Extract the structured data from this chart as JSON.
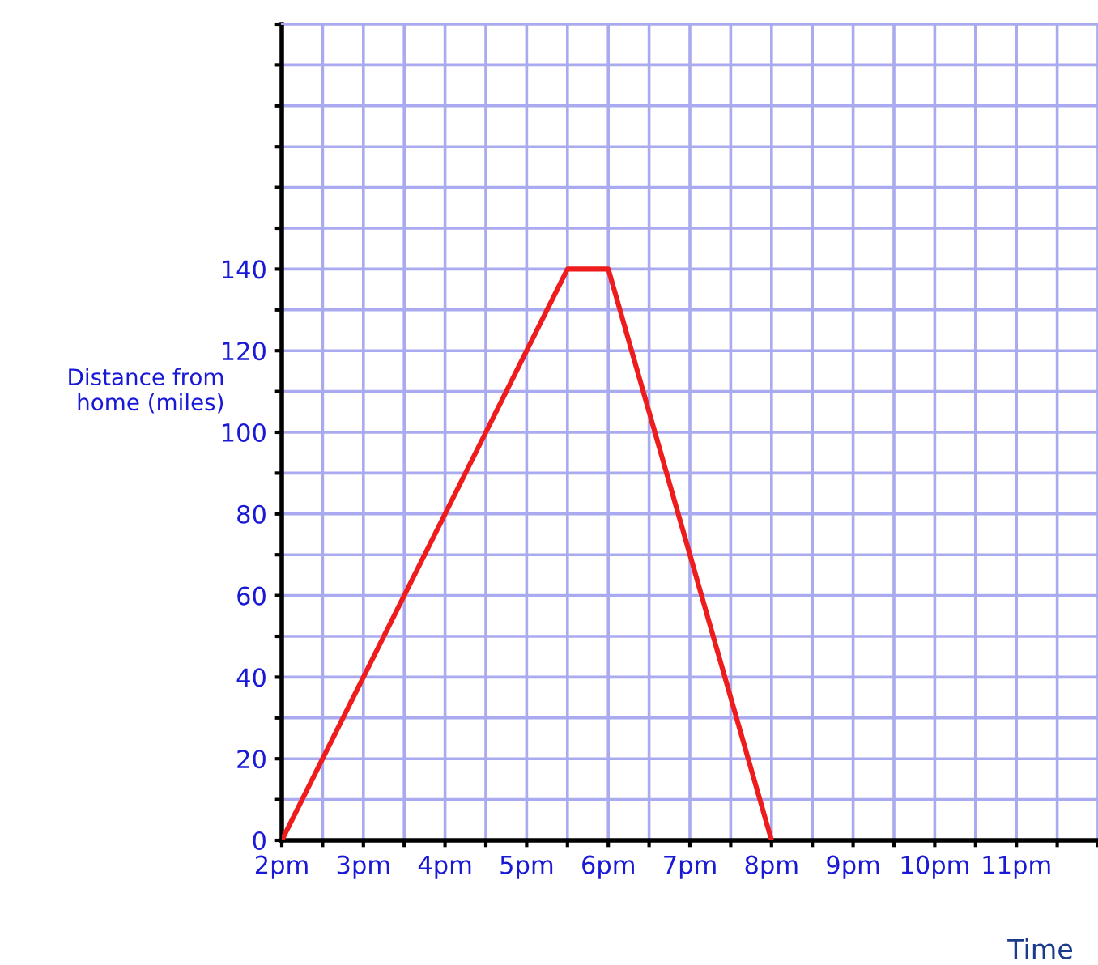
{
  "chart_data": {
    "type": "line",
    "xlabel": "Time",
    "ylabel": "Distance from\nhome (miles)",
    "categories": [
      "2pm",
      null,
      "3pm",
      null,
      "4pm",
      null,
      "5pm",
      null,
      "6pm",
      null,
      "7pm",
      null,
      "8pm",
      null,
      "9pm",
      null,
      "10pm",
      null,
      "11pm",
      null,
      null
    ],
    "series": [
      {
        "color": "#ee1c1c",
        "values": [
          0,
          20,
          40,
          60,
          80,
          100,
          120,
          140,
          140,
          105,
          70,
          35,
          0,
          null,
          null,
          null,
          null,
          null,
          null,
          null,
          null
        ]
      }
    ],
    "ylim": [
      0,
      200
    ],
    "yticks": [
      0,
      {
        "value": 10,
        "label": null
      },
      20,
      {
        "value": 30,
        "label": null
      },
      40,
      {
        "value": 50,
        "label": null
      },
      60,
      {
        "value": 70,
        "label": null
      },
      80,
      {
        "value": 90,
        "label": null
      },
      100,
      {
        "value": 110,
        "label": null
      },
      120,
      {
        "value": 130,
        "label": null
      },
      140,
      {
        "value": 150,
        "label": null
      },
      {
        "value": 160,
        "label": null
      },
      {
        "value": 170,
        "label": null
      },
      {
        "value": 180,
        "label": null
      },
      {
        "value": 190,
        "label": null
      },
      {
        "value": 200,
        "label": null
      }
    ],
    "grid": true,
    "marker": "none",
    "line_style": "solid",
    "legend": false
  }
}
